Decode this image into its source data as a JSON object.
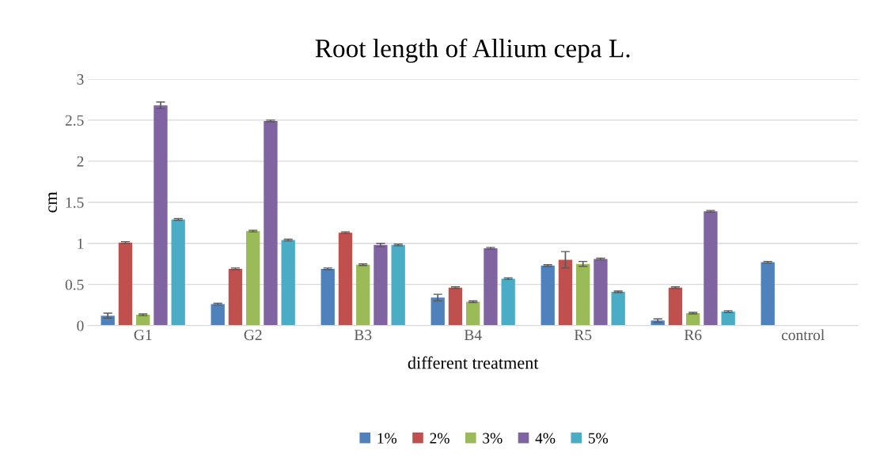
{
  "chart_data": {
    "type": "bar",
    "title": "Root length of Allium cepa L.",
    "xlabel": "different treatment",
    "ylabel": "cm",
    "categories": [
      "G1",
      "G2",
      "B3",
      "B4",
      "R5",
      "R6",
      "control"
    ],
    "series": [
      {
        "name": "1%",
        "color": "#4f81bd",
        "values": [
          0.12,
          0.26,
          0.69,
          0.34,
          0.73,
          0.06,
          0.77
        ],
        "errors": [
          0.03,
          0.01,
          0.01,
          0.04,
          0.01,
          0.02,
          0.01
        ]
      },
      {
        "name": "2%",
        "color": "#c0504d",
        "values": [
          1.01,
          0.69,
          1.13,
          0.46,
          0.8,
          0.46,
          null
        ],
        "errors": [
          0.01,
          0.01,
          0.01,
          0.01,
          0.1,
          0.01,
          null
        ]
      },
      {
        "name": "3%",
        "color": "#9bbb59",
        "values": [
          0.13,
          1.15,
          0.74,
          0.29,
          0.75,
          0.15,
          null
        ],
        "errors": [
          0.01,
          0.01,
          0.01,
          0.01,
          0.03,
          0.01,
          null
        ]
      },
      {
        "name": "4%",
        "color": "#8064a2",
        "values": [
          2.68,
          2.49,
          0.98,
          0.94,
          0.81,
          1.39,
          null
        ],
        "errors": [
          0.04,
          0.01,
          0.02,
          0.01,
          0.01,
          0.01,
          null
        ]
      },
      {
        "name": "5%",
        "color": "#4bacc6",
        "values": [
          1.29,
          1.04,
          0.98,
          0.57,
          0.41,
          0.17,
          null
        ],
        "errors": [
          0.01,
          0.01,
          0.01,
          0.01,
          0.01,
          0.01,
          null
        ]
      }
    ],
    "ylim": [
      0,
      3
    ],
    "yticks": [
      0,
      0.5,
      1,
      1.5,
      2,
      2.5,
      3
    ],
    "grid": "y",
    "legend": "bottom"
  }
}
